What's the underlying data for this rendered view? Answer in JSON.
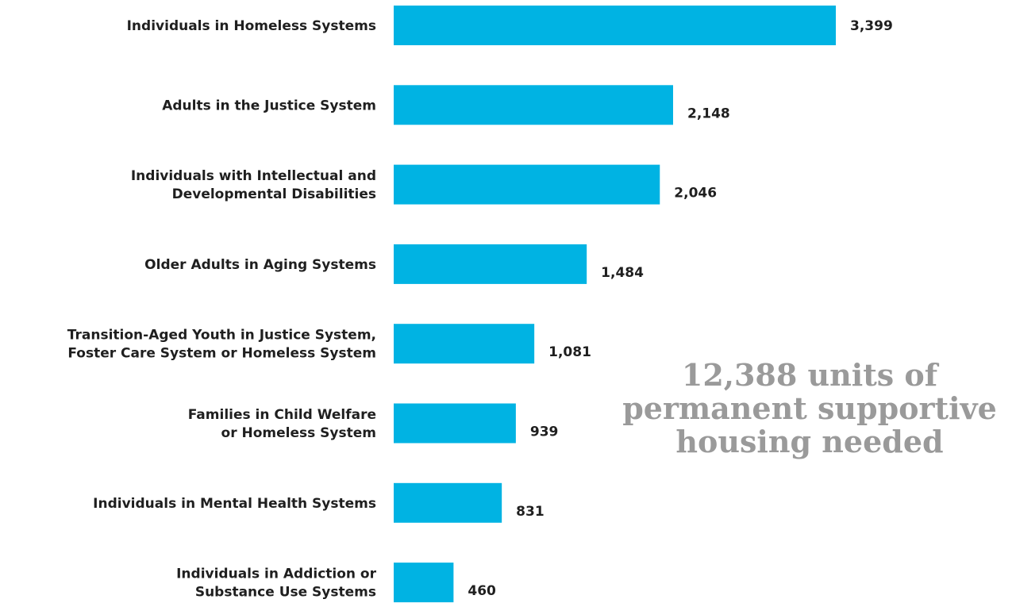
{
  "chart_data": {
    "type": "bar",
    "orientation": "horizontal",
    "categories": [
      [
        "Individuals in Homeless Systems"
      ],
      [
        "Adults in the Justice System"
      ],
      [
        "Individuals with Intellectual and",
        "Developmental Disabilities"
      ],
      [
        "Older Adults in Aging Systems"
      ],
      [
        "Transition-Aged Youth in Justice System,",
        "Foster Care System or Homeless System"
      ],
      [
        "Families in Child Welfare",
        "or Homeless System"
      ],
      [
        "Individuals in Mental Health Systems"
      ],
      [
        "Individuals in Addiction or",
        "Substance Use Systems"
      ]
    ],
    "values": [
      3399,
      2148,
      2046,
      1484,
      1081,
      939,
      831,
      460
    ],
    "value_labels": [
      "3,399",
      "2,148",
      "2,046",
      "1,484",
      "1,081",
      "939",
      "831",
      "460"
    ],
    "bar_color": "#00b3e3",
    "xlim": [
      0,
      3399
    ],
    "grid": false,
    "legend": false
  },
  "annotation": {
    "lines": [
      "12,388 units of",
      "permanent supportive",
      "housing needed"
    ],
    "color": "#9a9a9a"
  }
}
